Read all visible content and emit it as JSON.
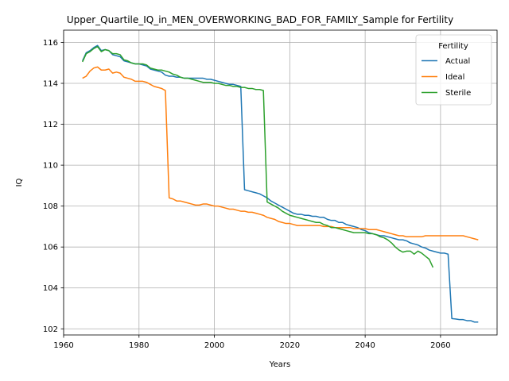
{
  "chart_data": {
    "type": "line",
    "title": "Upper_Quartile_IQ_in_MEN_OVERWORKING_BAD_FOR_FAMILY_Sample for Fertility",
    "xlabel": "Years",
    "ylabel": "IQ",
    "xlim": [
      1960,
      2075
    ],
    "ylim": [
      101.7,
      116.6
    ],
    "xticks": [
      1960,
      1980,
      2000,
      2020,
      2040,
      2060
    ],
    "yticks": [
      102,
      104,
      106,
      108,
      110,
      112,
      114,
      116
    ],
    "grid": true,
    "legend": {
      "title": "Fertility",
      "placement": "top-right"
    },
    "series": [
      {
        "name": "Actual",
        "color": "#1f77b4",
        "points": [
          [
            1965,
            115.1
          ],
          [
            1966,
            115.5
          ],
          [
            1967,
            115.6
          ],
          [
            1968,
            115.75
          ],
          [
            1969,
            115.85
          ],
          [
            1970,
            115.6
          ],
          [
            1971,
            115.65
          ],
          [
            1972,
            115.6
          ],
          [
            1973,
            115.4
          ],
          [
            1974,
            115.35
          ],
          [
            1975,
            115.3
          ],
          [
            1976,
            115.1
          ],
          [
            1977,
            115.05
          ],
          [
            1978,
            115.0
          ],
          [
            1979,
            114.95
          ],
          [
            1980,
            114.95
          ],
          [
            1981,
            114.9
          ],
          [
            1982,
            114.85
          ],
          [
            1983,
            114.7
          ],
          [
            1984,
            114.65
          ],
          [
            1985,
            114.6
          ],
          [
            1986,
            114.55
          ],
          [
            1987,
            114.4
          ],
          [
            1988,
            114.35
          ],
          [
            1989,
            114.35
          ],
          [
            1990,
            114.3
          ],
          [
            1991,
            114.3
          ],
          [
            1992,
            114.25
          ],
          [
            1993,
            114.25
          ],
          [
            1994,
            114.25
          ],
          [
            1995,
            114.25
          ],
          [
            1996,
            114.25
          ],
          [
            1997,
            114.25
          ],
          [
            1998,
            114.2
          ],
          [
            1999,
            114.2
          ],
          [
            2000,
            114.15
          ],
          [
            2001,
            114.1
          ],
          [
            2002,
            114.05
          ],
          [
            2003,
            114.0
          ],
          [
            2004,
            113.95
          ],
          [
            2005,
            113.95
          ],
          [
            2006,
            113.9
          ],
          [
            2007,
            113.85
          ],
          [
            2008,
            108.8
          ],
          [
            2009,
            108.75
          ],
          [
            2010,
            108.7
          ],
          [
            2011,
            108.65
          ],
          [
            2012,
            108.6
          ],
          [
            2013,
            108.5
          ],
          [
            2014,
            108.4
          ],
          [
            2015,
            108.25
          ],
          [
            2016,
            108.15
          ],
          [
            2017,
            108.05
          ],
          [
            2018,
            107.95
          ],
          [
            2019,
            107.85
          ],
          [
            2020,
            107.75
          ],
          [
            2021,
            107.65
          ],
          [
            2022,
            107.6
          ],
          [
            2023,
            107.6
          ],
          [
            2024,
            107.55
          ],
          [
            2025,
            107.55
          ],
          [
            2026,
            107.5
          ],
          [
            2027,
            107.5
          ],
          [
            2028,
            107.45
          ],
          [
            2029,
            107.45
          ],
          [
            2030,
            107.35
          ],
          [
            2031,
            107.3
          ],
          [
            2032,
            107.3
          ],
          [
            2033,
            107.2
          ],
          [
            2034,
            107.2
          ],
          [
            2035,
            107.1
          ],
          [
            2036,
            107.05
          ],
          [
            2037,
            107.0
          ],
          [
            2038,
            106.95
          ],
          [
            2039,
            106.85
          ],
          [
            2040,
            106.8
          ],
          [
            2041,
            106.7
          ],
          [
            2042,
            106.65
          ],
          [
            2043,
            106.6
          ],
          [
            2044,
            106.55
          ],
          [
            2045,
            106.55
          ],
          [
            2046,
            106.5
          ],
          [
            2047,
            106.45
          ],
          [
            2048,
            106.4
          ],
          [
            2049,
            106.35
          ],
          [
            2050,
            106.35
          ],
          [
            2051,
            106.3
          ],
          [
            2052,
            106.2
          ],
          [
            2053,
            106.15
          ],
          [
            2054,
            106.1
          ],
          [
            2055,
            106.0
          ],
          [
            2056,
            105.95
          ],
          [
            2057,
            105.85
          ],
          [
            2058,
            105.8
          ],
          [
            2059,
            105.75
          ],
          [
            2060,
            105.7
          ],
          [
            2061,
            105.7
          ],
          [
            2062,
            105.65
          ],
          [
            2063,
            102.5
          ],
          [
            2064,
            102.48
          ],
          [
            2065,
            102.45
          ],
          [
            2066,
            102.45
          ],
          [
            2067,
            102.4
          ],
          [
            2068,
            102.4
          ],
          [
            2069,
            102.33
          ],
          [
            2070,
            102.33
          ]
        ]
      },
      {
        "name": "Ideal",
        "color": "#ff7f0e",
        "points": [
          [
            1965,
            114.25
          ],
          [
            1966,
            114.35
          ],
          [
            1967,
            114.6
          ],
          [
            1968,
            114.75
          ],
          [
            1969,
            114.8
          ],
          [
            1970,
            114.65
          ],
          [
            1971,
            114.65
          ],
          [
            1972,
            114.7
          ],
          [
            1973,
            114.5
          ],
          [
            1974,
            114.55
          ],
          [
            1975,
            114.5
          ],
          [
            1976,
            114.3
          ],
          [
            1977,
            114.25
          ],
          [
            1978,
            114.2
          ],
          [
            1979,
            114.1
          ],
          [
            1980,
            114.1
          ],
          [
            1981,
            114.1
          ],
          [
            1982,
            114.05
          ],
          [
            1983,
            113.95
          ],
          [
            1984,
            113.85
          ],
          [
            1985,
            113.8
          ],
          [
            1986,
            113.75
          ],
          [
            1987,
            113.65
          ],
          [
            1988,
            108.4
          ],
          [
            1989,
            108.35
          ],
          [
            1990,
            108.25
          ],
          [
            1991,
            108.25
          ],
          [
            1992,
            108.2
          ],
          [
            1993,
            108.15
          ],
          [
            1994,
            108.1
          ],
          [
            1995,
            108.05
          ],
          [
            1996,
            108.05
          ],
          [
            1997,
            108.1
          ],
          [
            1998,
            108.1
          ],
          [
            1999,
            108.05
          ],
          [
            2000,
            108.0
          ],
          [
            2001,
            108.0
          ],
          [
            2002,
            107.95
          ],
          [
            2003,
            107.9
          ],
          [
            2004,
            107.85
          ],
          [
            2005,
            107.85
          ],
          [
            2006,
            107.8
          ],
          [
            2007,
            107.75
          ],
          [
            2008,
            107.75
          ],
          [
            2009,
            107.7
          ],
          [
            2010,
            107.7
          ],
          [
            2011,
            107.65
          ],
          [
            2012,
            107.6
          ],
          [
            2013,
            107.55
          ],
          [
            2014,
            107.45
          ],
          [
            2015,
            107.4
          ],
          [
            2016,
            107.35
          ],
          [
            2017,
            107.25
          ],
          [
            2018,
            107.2
          ],
          [
            2019,
            107.15
          ],
          [
            2020,
            107.15
          ],
          [
            2021,
            107.1
          ],
          [
            2022,
            107.05
          ],
          [
            2023,
            107.05
          ],
          [
            2024,
            107.05
          ],
          [
            2025,
            107.05
          ],
          [
            2026,
            107.05
          ],
          [
            2027,
            107.05
          ],
          [
            2028,
            107.05
          ],
          [
            2029,
            107.0
          ],
          [
            2030,
            107.0
          ],
          [
            2031,
            107.0
          ],
          [
            2032,
            106.95
          ],
          [
            2033,
            106.95
          ],
          [
            2034,
            106.95
          ],
          [
            2035,
            106.95
          ],
          [
            2036,
            106.95
          ],
          [
            2037,
            106.9
          ],
          [
            2038,
            106.9
          ],
          [
            2039,
            106.9
          ],
          [
            2040,
            106.9
          ],
          [
            2041,
            106.85
          ],
          [
            2042,
            106.85
          ],
          [
            2043,
            106.85
          ],
          [
            2044,
            106.8
          ],
          [
            2045,
            106.75
          ],
          [
            2046,
            106.7
          ],
          [
            2047,
            106.65
          ],
          [
            2048,
            106.6
          ],
          [
            2049,
            106.55
          ],
          [
            2050,
            106.55
          ],
          [
            2051,
            106.5
          ],
          [
            2052,
            106.5
          ],
          [
            2053,
            106.5
          ],
          [
            2054,
            106.5
          ],
          [
            2055,
            106.5
          ],
          [
            2056,
            106.55
          ],
          [
            2057,
            106.55
          ],
          [
            2058,
            106.55
          ],
          [
            2059,
            106.55
          ],
          [
            2060,
            106.55
          ],
          [
            2061,
            106.55
          ],
          [
            2062,
            106.55
          ],
          [
            2063,
            106.55
          ],
          [
            2064,
            106.55
          ],
          [
            2065,
            106.55
          ],
          [
            2066,
            106.55
          ],
          [
            2067,
            106.5
          ],
          [
            2068,
            106.45
          ],
          [
            2069,
            106.4
          ],
          [
            2070,
            106.35
          ]
        ]
      },
      {
        "name": "Sterile",
        "color": "#2ca02c",
        "points": [
          [
            1965,
            115.05
          ],
          [
            1966,
            115.45
          ],
          [
            1967,
            115.55
          ],
          [
            1968,
            115.7
          ],
          [
            1969,
            115.8
          ],
          [
            1970,
            115.55
          ],
          [
            1971,
            115.65
          ],
          [
            1972,
            115.6
          ],
          [
            1973,
            115.45
          ],
          [
            1974,
            115.45
          ],
          [
            1975,
            115.4
          ],
          [
            1976,
            115.15
          ],
          [
            1977,
            115.1
          ],
          [
            1978,
            115.0
          ],
          [
            1979,
            114.95
          ],
          [
            1980,
            114.95
          ],
          [
            1981,
            114.95
          ],
          [
            1982,
            114.9
          ],
          [
            1983,
            114.75
          ],
          [
            1984,
            114.7
          ],
          [
            1985,
            114.65
          ],
          [
            1986,
            114.65
          ],
          [
            1987,
            114.6
          ],
          [
            1988,
            114.55
          ],
          [
            1989,
            114.45
          ],
          [
            1990,
            114.4
          ],
          [
            1991,
            114.3
          ],
          [
            1992,
            114.25
          ],
          [
            1993,
            114.25
          ],
          [
            1994,
            114.2
          ],
          [
            1995,
            114.15
          ],
          [
            1996,
            114.1
          ],
          [
            1997,
            114.05
          ],
          [
            1998,
            114.05
          ],
          [
            1999,
            114.05
          ],
          [
            2000,
            114.0
          ],
          [
            2001,
            114.0
          ],
          [
            2002,
            113.95
          ],
          [
            2003,
            113.9
          ],
          [
            2004,
            113.9
          ],
          [
            2005,
            113.85
          ],
          [
            2006,
            113.85
          ],
          [
            2007,
            113.8
          ],
          [
            2008,
            113.8
          ],
          [
            2009,
            113.75
          ],
          [
            2010,
            113.75
          ],
          [
            2011,
            113.7
          ],
          [
            2012,
            113.7
          ],
          [
            2013,
            113.65
          ],
          [
            2014,
            108.2
          ],
          [
            2015,
            108.1
          ],
          [
            2016,
            108.0
          ],
          [
            2017,
            107.9
          ],
          [
            2018,
            107.75
          ],
          [
            2019,
            107.65
          ],
          [
            2020,
            107.55
          ],
          [
            2021,
            107.5
          ],
          [
            2022,
            107.45
          ],
          [
            2023,
            107.4
          ],
          [
            2024,
            107.35
          ],
          [
            2025,
            107.3
          ],
          [
            2026,
            107.25
          ],
          [
            2027,
            107.2
          ],
          [
            2028,
            107.2
          ],
          [
            2029,
            107.1
          ],
          [
            2030,
            107.05
          ],
          [
            2031,
            106.95
          ],
          [
            2032,
            106.95
          ],
          [
            2033,
            106.9
          ],
          [
            2034,
            106.85
          ],
          [
            2035,
            106.8
          ],
          [
            2036,
            106.75
          ],
          [
            2037,
            106.7
          ],
          [
            2038,
            106.7
          ],
          [
            2039,
            106.7
          ],
          [
            2040,
            106.7
          ],
          [
            2041,
            106.65
          ],
          [
            2042,
            106.65
          ],
          [
            2043,
            106.6
          ],
          [
            2044,
            106.5
          ],
          [
            2045,
            106.45
          ],
          [
            2046,
            106.35
          ],
          [
            2047,
            106.2
          ],
          [
            2048,
            106.0
          ],
          [
            2049,
            105.85
          ],
          [
            2050,
            105.75
          ],
          [
            2051,
            105.8
          ],
          [
            2052,
            105.8
          ],
          [
            2053,
            105.65
          ],
          [
            2054,
            105.8
          ],
          [
            2055,
            105.7
          ],
          [
            2056,
            105.55
          ],
          [
            2057,
            105.4
          ],
          [
            2058,
            105.0
          ]
        ]
      }
    ]
  }
}
